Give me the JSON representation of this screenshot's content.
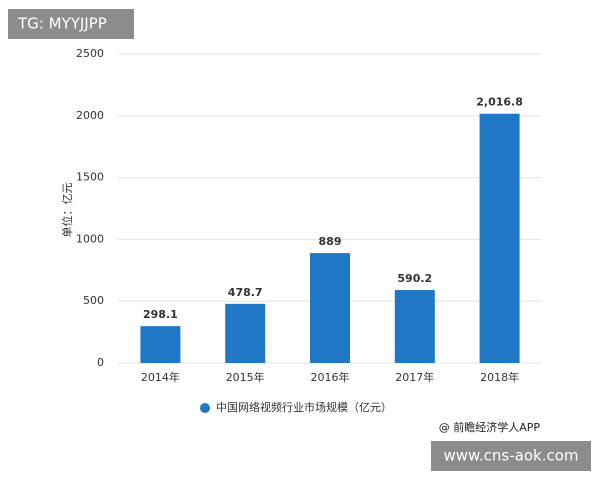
{
  "overlay_label": "TG: MYYJJPP",
  "source": "@ 前瞻经济学人APP",
  "site": "www.cns-aok.com",
  "chart_data": {
    "type": "bar",
    "y_label": "单位：亿元",
    "categories": [
      "2014年",
      "2015年",
      "2016年",
      "2017年",
      "2018年"
    ],
    "series": [
      {
        "name": "中国网络视频行业市场规模（亿元）",
        "color": "#1f77c6",
        "values": [
          298.1,
          478.7,
          889,
          590.2,
          2016.8
        ],
        "value_labels": [
          "298.1",
          "478.7",
          "889",
          "590.2",
          "2,016.8"
        ]
      }
    ],
    "ylim": [
      0,
      2500
    ],
    "yticks": [
      0,
      500,
      1000,
      1500,
      2000,
      2500
    ],
    "grid": true
  }
}
